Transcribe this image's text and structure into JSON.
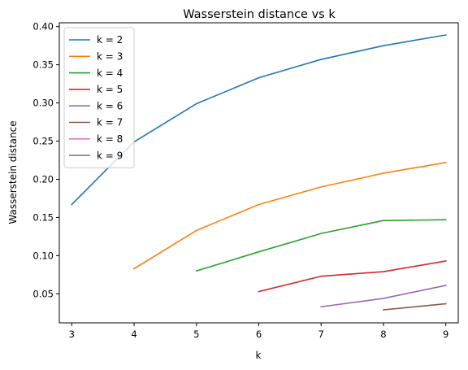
{
  "chart_data": {
    "type": "line",
    "title": "Wasserstein distance vs k",
    "xlabel": "k",
    "ylabel": "Wasserstein distance",
    "xlim": [
      2.8,
      9.2
    ],
    "ylim": [
      0.012,
      0.405
    ],
    "xticks": [
      "3",
      "4",
      "5",
      "6",
      "7",
      "8",
      "9"
    ],
    "yticks": [
      "0.05",
      "0.10",
      "0.15",
      "0.20",
      "0.25",
      "0.30",
      "0.35",
      "0.40"
    ],
    "grid": false,
    "legend": "top-left",
    "series": [
      {
        "name": "k = 2",
        "color": "#1f77b4",
        "x": [
          3,
          4,
          5,
          6,
          7,
          8,
          9
        ],
        "y": [
          0.167,
          0.249,
          0.299,
          0.333,
          0.357,
          0.375,
          0.389
        ]
      },
      {
        "name": "k = 3",
        "color": "#ff7f0e",
        "x": [
          4,
          5,
          6,
          7,
          8,
          9
        ],
        "y": [
          0.083,
          0.133,
          0.167,
          0.19,
          0.208,
          0.222
        ]
      },
      {
        "name": "k = 4",
        "color": "#2ca02c",
        "x": [
          5,
          6,
          7,
          8,
          9
        ],
        "y": [
          0.08,
          0.105,
          0.129,
          0.146,
          0.147
        ]
      },
      {
        "name": "k = 5",
        "color": "#d62728",
        "x": [
          6,
          7,
          8,
          9
        ],
        "y": [
          0.053,
          0.073,
          0.079,
          0.093
        ]
      },
      {
        "name": "k = 6",
        "color": "#9467bd",
        "x": [
          7,
          8,
          9
        ],
        "y": [
          0.033,
          0.044,
          0.061
        ]
      },
      {
        "name": "k = 7",
        "color": "#8c564b",
        "x": [
          8,
          9
        ],
        "y": [
          0.029,
          0.037
        ]
      },
      {
        "name": "k = 8",
        "color": "#e377c2",
        "x": [],
        "y": []
      },
      {
        "name": "k = 9",
        "color": "#7f7f7f",
        "x": [],
        "y": []
      }
    ]
  }
}
